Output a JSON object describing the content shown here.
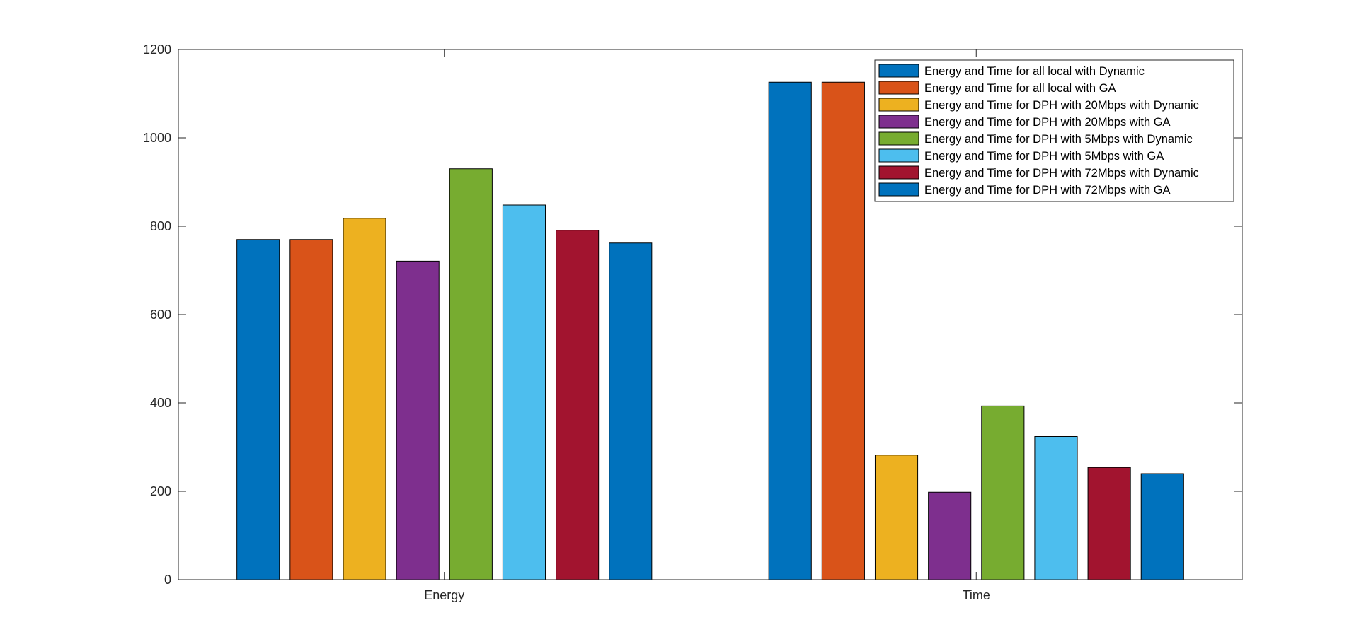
{
  "chart_data": {
    "type": "bar",
    "categories": [
      "Energy",
      "Time"
    ],
    "ylim": [
      0,
      1200
    ],
    "yticks": [
      0,
      200,
      400,
      600,
      800,
      1000,
      1200
    ],
    "grid": false,
    "legend_position": "top-right",
    "series": [
      {
        "name": "Energy and Time for all local with Dynamic",
        "color": "#0072BD",
        "values": [
          770,
          1126
        ]
      },
      {
        "name": "Energy and Time for all local with GA",
        "color": "#D95319",
        "values": [
          770,
          1126
        ]
      },
      {
        "name": "Energy and Time for DPH with 20Mbps with Dynamic",
        "color": "#EDB120",
        "values": [
          818,
          282
        ]
      },
      {
        "name": "Energy and Time for DPH with 20Mbps with GA",
        "color": "#7E2F8E",
        "values": [
          721,
          198
        ]
      },
      {
        "name": "Energy and Time for DPH with 5Mbps with Dynamic",
        "color": "#77AC30",
        "values": [
          930,
          393
        ]
      },
      {
        "name": "Energy and Time for DPH with 5Mbps with GA",
        "color": "#4DBEEE",
        "values": [
          848,
          324
        ]
      },
      {
        "name": "Energy and Time for DPH with 72Mbps with Dynamic",
        "color": "#A2142F",
        "values": [
          791,
          254
        ]
      },
      {
        "name": "Energy and Time for DPH with 72Mbps with GA",
        "color": "#0072BD",
        "values": [
          762,
          240
        ]
      }
    ]
  }
}
